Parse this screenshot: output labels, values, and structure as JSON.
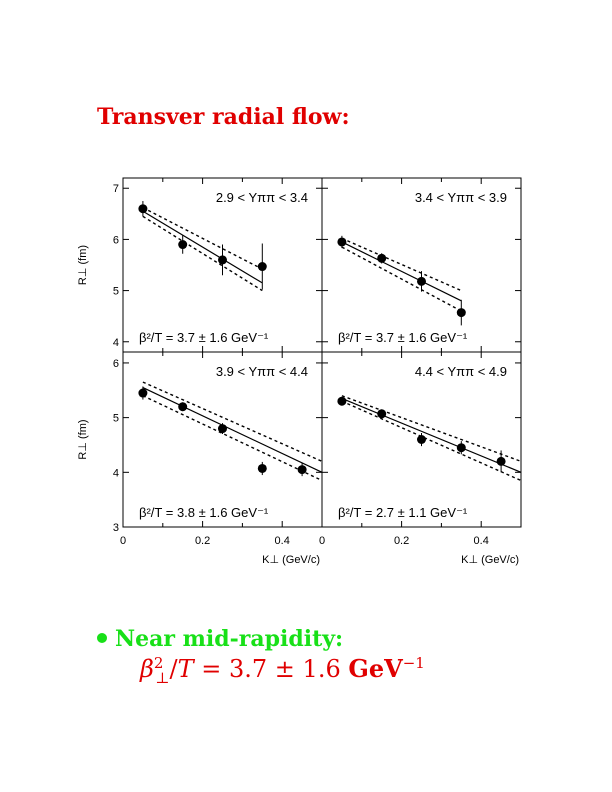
{
  "title": "Transver radial flow:",
  "bullet": {
    "label": "Near mid-rapidity:"
  },
  "formula": {
    "beta": "β",
    "sup": "2",
    "sub": "⊥",
    "slash": "/",
    "T": "T",
    "eq": " = 3.7 ± 1.6 ",
    "unit": "GeV",
    "unit_exp": "−1"
  },
  "colors": {
    "title": "#e00000",
    "bullet": "#18e018",
    "formula": "#e00000"
  },
  "chart_data": [
    {
      "type": "scatter",
      "title": "2.9 < Yππ < 3.4",
      "ylabel": "R⊥ (fm)",
      "xlabel": "",
      "xlim": [
        0,
        0.5
      ],
      "ylim": [
        3.8,
        7.2
      ],
      "yticks": [
        4,
        5,
        6,
        7
      ],
      "xticks": [],
      "annotation": "β²/T = 3.7 ± 1.6 GeV⁻¹",
      "points": [
        {
          "x": 0.05,
          "y": 6.6,
          "err": 0.15
        },
        {
          "x": 0.15,
          "y": 5.9,
          "err": 0.18
        },
        {
          "x": 0.25,
          "y": 5.6,
          "err": 0.3
        },
        {
          "x": 0.35,
          "y": 5.47,
          "err": 0.45
        }
      ],
      "fit": {
        "x": [
          0.05,
          0.35
        ],
        "central": [
          6.55,
          5.15
        ],
        "upper": [
          6.62,
          5.42
        ],
        "lower": [
          6.45,
          5.0
        ]
      }
    },
    {
      "type": "scatter",
      "title": "3.4 < Yππ < 3.9",
      "ylabel": "",
      "xlabel": "",
      "xlim": [
        0,
        0.5
      ],
      "ylim": [
        3.8,
        7.2
      ],
      "yticks": [
        4,
        5,
        6,
        7
      ],
      "xticks": [],
      "annotation": "β²/T = 3.7 ± 1.6 GeV⁻¹",
      "points": [
        {
          "x": 0.05,
          "y": 5.95,
          "err": 0.12
        },
        {
          "x": 0.15,
          "y": 5.63,
          "err": 0.1
        },
        {
          "x": 0.25,
          "y": 5.18,
          "err": 0.2
        },
        {
          "x": 0.35,
          "y": 4.57,
          "err": 0.25
        }
      ],
      "fit": {
        "x": [
          0.05,
          0.35
        ],
        "central": [
          5.95,
          4.8
        ],
        "upper": [
          6.02,
          5.0
        ],
        "lower": [
          5.85,
          4.6
        ]
      }
    },
    {
      "type": "scatter",
      "title": "3.9 < Yππ < 4.4",
      "ylabel": "R⊥ (fm)",
      "xlabel": "K⊥ (GeV/c)",
      "xlim": [
        0,
        0.5
      ],
      "ylim": [
        3,
        6.2
      ],
      "yticks": [
        3,
        4,
        5,
        6
      ],
      "xticks": [
        {
          "v": 0,
          "label": "0"
        },
        {
          "v": 0.2,
          "label": "0.2"
        },
        {
          "v": 0.4,
          "label": "0.4"
        }
      ],
      "annotation": "β²/T = 3.8 ± 1.6 GeV⁻¹",
      "points": [
        {
          "x": 0.05,
          "y": 5.45,
          "err": 0.12
        },
        {
          "x": 0.15,
          "y": 5.2,
          "err": 0.08
        },
        {
          "x": 0.25,
          "y": 4.8,
          "err": 0.1
        },
        {
          "x": 0.35,
          "y": 4.07,
          "err": 0.12
        },
        {
          "x": 0.45,
          "y": 4.05,
          "err": 0.12
        }
      ],
      "fit": {
        "x": [
          0.05,
          0.5
        ],
        "central": [
          5.55,
          4.0
        ],
        "upper": [
          5.65,
          4.2
        ],
        "lower": [
          5.4,
          3.85
        ]
      }
    },
    {
      "type": "scatter",
      "title": "4.4 < Yππ < 4.9",
      "ylabel": "",
      "xlabel": "K⊥ (GeV/c)",
      "xlim": [
        0,
        0.5
      ],
      "ylim": [
        3,
        6.2
      ],
      "yticks": [
        3,
        4,
        5,
        6
      ],
      "xticks": [
        {
          "v": 0,
          "label": "0"
        },
        {
          "v": 0.2,
          "label": "0.2"
        },
        {
          "v": 0.4,
          "label": "0.4"
        }
      ],
      "annotation": "β²/T = 2.7 ± 1.1 GeV⁻¹",
      "points": [
        {
          "x": 0.05,
          "y": 5.3,
          "err": 0.08
        },
        {
          "x": 0.15,
          "y": 5.07,
          "err": 0.08
        },
        {
          "x": 0.25,
          "y": 4.6,
          "err": 0.12
        },
        {
          "x": 0.35,
          "y": 4.45,
          "err": 0.12
        },
        {
          "x": 0.45,
          "y": 4.2,
          "err": 0.2
        }
      ],
      "fit": {
        "x": [
          0.05,
          0.5
        ],
        "central": [
          5.35,
          4.0
        ],
        "upper": [
          5.4,
          4.2
        ],
        "lower": [
          5.3,
          3.85
        ]
      }
    }
  ]
}
